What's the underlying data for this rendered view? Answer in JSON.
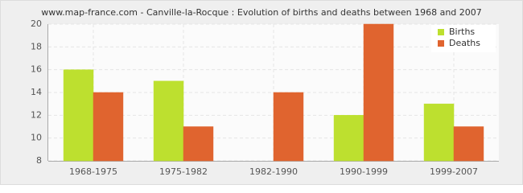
{
  "chart_data": {
    "type": "bar",
    "title": "www.map-france.com - Canville-la-Rocque : Evolution of births and deaths between 1968 and 2007",
    "categories": [
      "1968-1975",
      "1975-1982",
      "1982-1990",
      "1990-1999",
      "1999-2007"
    ],
    "series": [
      {
        "name": "Births",
        "color": "#bde02f",
        "values": [
          16,
          15,
          8,
          12,
          13
        ]
      },
      {
        "name": "Deaths",
        "color": "#e0642f",
        "values": [
          14,
          11,
          14,
          20,
          11
        ]
      }
    ],
    "ylim": [
      8,
      20
    ],
    "yticks": [
      8,
      10,
      12,
      14,
      16,
      18,
      20
    ],
    "grid": true,
    "legend": "top-right"
  }
}
